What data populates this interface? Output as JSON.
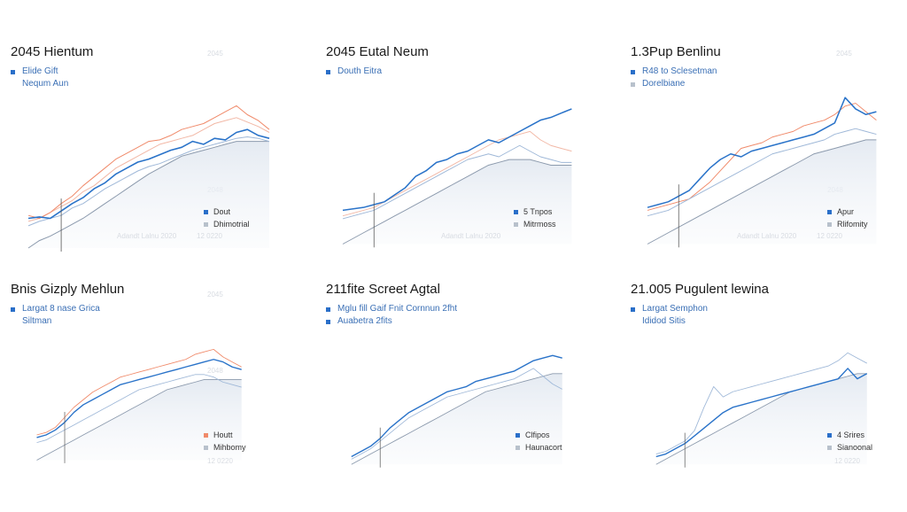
{
  "panels": [
    {
      "title": "2045 Hientum",
      "legend": [
        "Elide Gift",
        "Nequm Aun"
      ],
      "corner_legend": [
        "Dout",
        "Dhimotrial"
      ],
      "faint_top": "2045",
      "faint_mid": "2048",
      "faint_bottom_left": "Adandt Lalnu 2020",
      "faint_bottom_right": "12 0220"
    },
    {
      "title": "2045 Eutal Neum",
      "legend": [
        "Douth Eitra"
      ],
      "corner_legend": [
        "5 Tnpos",
        "Mitrmoss"
      ],
      "faint_top": "",
      "faint_mid": "",
      "faint_bottom_left": "Adandt Lalnu 2020",
      "faint_bottom_right": ""
    },
    {
      "title": "1.3Pup Benlinu",
      "legend": [
        "R48 to Sclesetman",
        "Dorelbiane"
      ],
      "corner_legend": [
        "Apur",
        "Rlifomity"
      ],
      "faint_top": "2045",
      "faint_mid": "2048",
      "faint_bottom_left": "Adandt Lalnu 2020",
      "faint_bottom_right": "12 0220"
    },
    {
      "title": "Bnis Gizply Mehlun",
      "legend": [
        "Largat 8 nase Grica",
        "Siltman"
      ],
      "corner_legend": [
        "Houtt",
        "Mihbomy"
      ],
      "faint_top": "2045",
      "faint_mid": "2048",
      "faint_bottom_left": "",
      "faint_bottom_right": "12 0220"
    },
    {
      "title": "211fite Screet Agtal",
      "legend": [
        "Mglu fill Gaif Fnit Cornnun 2fht",
        "Auabetra 2fits"
      ],
      "corner_legend": [
        "Clfipos",
        "Haunacort"
      ],
      "faint_top": "",
      "faint_mid": "",
      "faint_bottom_left": "",
      "faint_bottom_right": ""
    },
    {
      "title": "21.005 Pugulent lewina",
      "legend": [
        "Largat Semphon",
        "Ididod Sitis"
      ],
      "corner_legend": [
        "4 Srires",
        "Sianoonal"
      ],
      "faint_top": "",
      "faint_mid": "",
      "faint_bottom_left": "",
      "faint_bottom_right": "12 0220"
    }
  ],
  "chart_data": [
    {
      "type": "line",
      "title": "2045 Hientum",
      "series": [
        {
          "name": "Elide Gift",
          "color": "#2a73c9",
          "values": [
            20,
            21,
            20,
            25,
            30,
            34,
            40,
            44,
            50,
            54,
            58,
            60,
            63,
            66,
            68,
            72,
            70,
            74,
            73,
            78,
            80,
            76,
            74
          ]
        },
        {
          "name": "Nequm Aun",
          "color": "#9fb8d8",
          "values": [
            15,
            18,
            20,
            22,
            27,
            30,
            35,
            40,
            44,
            48,
            52,
            55,
            57,
            60,
            63,
            66,
            68,
            70,
            72,
            74,
            75,
            74,
            72
          ]
        },
        {
          "name": "",
          "color": "#f08a6a",
          "values": [
            22,
            20,
            24,
            30,
            35,
            42,
            48,
            54,
            60,
            64,
            68,
            72,
            73,
            76,
            80,
            82,
            84,
            88,
            92,
            96,
            90,
            86,
            80
          ]
        },
        {
          "name": "",
          "color": "#f2b8a6",
          "values": [
            18,
            20,
            24,
            28,
            32,
            38,
            42,
            48,
            54,
            58,
            62,
            66,
            70,
            72,
            74,
            76,
            80,
            84,
            86,
            88,
            85,
            82,
            78
          ]
        }
      ],
      "area": [
        0,
        5,
        8,
        12,
        16,
        20,
        25,
        30,
        35,
        40,
        45,
        50,
        54,
        58,
        62,
        64,
        66,
        68,
        70,
        72,
        72,
        72,
        72
      ],
      "ylim": [
        0,
        110
      ]
    },
    {
      "type": "line",
      "title": "2045 Eutal Neum",
      "series": [
        {
          "name": "Douth Eitra",
          "color": "#2a73c9",
          "values": [
            24,
            25,
            26,
            28,
            30,
            35,
            40,
            48,
            52,
            58,
            60,
            64,
            66,
            70,
            74,
            72,
            76,
            80,
            84,
            88,
            90,
            93,
            96
          ]
        },
        {
          "name": "",
          "color": "#9fb8d8",
          "values": [
            18,
            20,
            22,
            24,
            28,
            32,
            36,
            40,
            44,
            48,
            52,
            56,
            60,
            62,
            64,
            62,
            66,
            70,
            66,
            62,
            60,
            58,
            58
          ]
        },
        {
          "name": "",
          "color": "#f2b8a6",
          "values": [
            20,
            22,
            24,
            26,
            30,
            34,
            38,
            42,
            46,
            50,
            54,
            58,
            62,
            66,
            70,
            74,
            76,
            78,
            80,
            74,
            70,
            68,
            66
          ]
        }
      ],
      "area": [
        0,
        4,
        8,
        12,
        16,
        20,
        24,
        28,
        32,
        36,
        40,
        44,
        48,
        52,
        56,
        58,
        60,
        60,
        60,
        58,
        56,
        56,
        56
      ],
      "ylim": [
        0,
        110
      ]
    },
    {
      "type": "line",
      "title": "1.3Pup Benlinu",
      "series": [
        {
          "name": "R48 to Sclesetman",
          "color": "#2a73c9",
          "values": [
            26,
            28,
            30,
            34,
            38,
            46,
            54,
            60,
            64,
            62,
            66,
            68,
            70,
            72,
            74,
            76,
            78,
            82,
            86,
            104,
            96,
            92,
            94
          ]
        },
        {
          "name": "Dorelbiane",
          "color": "#9fb8d8",
          "values": [
            20,
            22,
            24,
            28,
            32,
            36,
            40,
            44,
            48,
            52,
            56,
            60,
            64,
            66,
            68,
            70,
            72,
            74,
            78,
            80,
            82,
            80,
            78
          ]
        },
        {
          "name": "",
          "color": "#f08a6a",
          "values": [
            24,
            26,
            28,
            30,
            32,
            38,
            44,
            52,
            60,
            68,
            70,
            72,
            76,
            78,
            80,
            84,
            86,
            88,
            92,
            98,
            100,
            94,
            88
          ]
        }
      ],
      "area": [
        0,
        4,
        8,
        12,
        16,
        20,
        24,
        28,
        32,
        36,
        40,
        44,
        48,
        52,
        56,
        60,
        64,
        66,
        68,
        70,
        72,
        74,
        74
      ],
      "ylim": [
        0,
        110
      ]
    },
    {
      "type": "line",
      "title": "Bnis Gizply Mehlun",
      "series": [
        {
          "name": "Largat 8 nase Grica",
          "color": "#2a73c9",
          "values": [
            18,
            20,
            24,
            30,
            38,
            44,
            48,
            52,
            56,
            60,
            62,
            64,
            66,
            68,
            70,
            72,
            74,
            76,
            78,
            80,
            78,
            74,
            72
          ]
        },
        {
          "name": "Siltman",
          "color": "#9fb8d8",
          "values": [
            14,
            16,
            20,
            24,
            28,
            32,
            36,
            40,
            44,
            48,
            52,
            56,
            58,
            60,
            62,
            64,
            66,
            68,
            68,
            66,
            62,
            60,
            58
          ]
        },
        {
          "name": "",
          "color": "#f08a6a",
          "values": [
            20,
            22,
            26,
            34,
            42,
            48,
            54,
            58,
            62,
            66,
            68,
            70,
            72,
            74,
            76,
            78,
            80,
            84,
            86,
            88,
            82,
            78,
            74
          ]
        }
      ],
      "area": [
        0,
        4,
        8,
        12,
        16,
        20,
        24,
        28,
        32,
        36,
        40,
        44,
        48,
        52,
        56,
        58,
        60,
        62,
        64,
        64,
        64,
        64,
        64
      ],
      "ylim": [
        0,
        110
      ]
    },
    {
      "type": "line",
      "title": "211fite Screet Agtal",
      "series": [
        {
          "name": "Mglu fill Gaif Fnit Cornnun 2fht",
          "color": "#2a73c9",
          "values": [
            6,
            10,
            14,
            20,
            28,
            34,
            40,
            44,
            48,
            52,
            56,
            58,
            60,
            64,
            66,
            68,
            70,
            72,
            76,
            80,
            82,
            84,
            82
          ]
        },
        {
          "name": "Auabetra 2fits",
          "color": "#9fb8d8",
          "values": [
            4,
            8,
            12,
            18,
            24,
            30,
            36,
            40,
            44,
            48,
            52,
            54,
            56,
            58,
            60,
            62,
            64,
            66,
            70,
            74,
            68,
            62,
            58
          ]
        }
      ],
      "area": [
        0,
        4,
        8,
        12,
        16,
        20,
        24,
        28,
        32,
        36,
        40,
        44,
        48,
        52,
        56,
        58,
        60,
        62,
        64,
        66,
        68,
        70,
        70
      ],
      "ylim": [
        0,
        110
      ]
    },
    {
      "type": "line",
      "title": "21.005 Pugulent lewina",
      "series": [
        {
          "name": "Largat Semphon",
          "color": "#2a73c9",
          "values": [
            6,
            8,
            12,
            16,
            22,
            28,
            34,
            40,
            44,
            46,
            48,
            50,
            52,
            54,
            56,
            58,
            60,
            62,
            64,
            66,
            74,
            66,
            70
          ]
        },
        {
          "name": "Ididod Sitis",
          "color": "#9fb8d8",
          "values": [
            8,
            10,
            14,
            18,
            26,
            44,
            60,
            52,
            56,
            58,
            60,
            62,
            64,
            66,
            68,
            70,
            72,
            74,
            76,
            80,
            86,
            82,
            78
          ]
        }
      ],
      "area": [
        0,
        4,
        8,
        12,
        16,
        20,
        24,
        28,
        32,
        36,
        40,
        44,
        48,
        52,
        56,
        58,
        60,
        62,
        64,
        66,
        68,
        70,
        70
      ],
      "ylim": [
        0,
        110
      ]
    }
  ]
}
